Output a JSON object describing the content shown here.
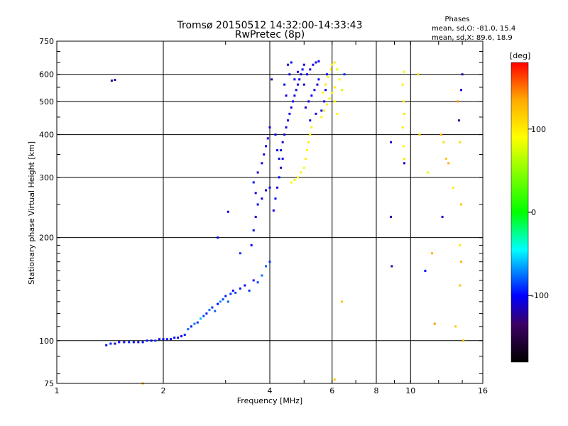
{
  "chart_data": {
    "type": "scatter",
    "title": "Tromsø 20150512 14:32:00-14:33:43",
    "subtitle": "RwPretec (8p)",
    "xlabel": "Frequency [MHz]",
    "ylabel": "Stationary phase Virtual Height [km]",
    "x_scale": "log",
    "y_scale": "log",
    "xlim": [
      1,
      16
    ],
    "ylim": [
      75,
      750
    ],
    "x_ticks": [
      1,
      2,
      4,
      6,
      8,
      10,
      16
    ],
    "y_ticks": [
      75,
      100,
      200,
      300,
      400,
      500,
      600,
      750
    ],
    "grid": true,
    "stats": {
      "heading": "Phases",
      "line_o": "mean, sd,O: -81.0, 15.4",
      "line_x": "mean, sd,X:  89.6, 18.9"
    },
    "colorbar": {
      "label": "[deg]",
      "range": [
        -180,
        180
      ],
      "ticks": [
        100,
        0,
        -100
      ],
      "colors": [
        "#ff0000",
        "#ffaa00",
        "#ffff00",
        "#00ff00",
        "#00ffff",
        "#0000ff",
        "#3c0064",
        "#000000"
      ]
    },
    "series": [
      {
        "points": [
          [
            1.38,
            97,
            -105
          ],
          [
            1.42,
            98,
            -95
          ],
          [
            1.46,
            98,
            -110
          ],
          [
            1.5,
            99,
            -100
          ],
          [
            1.55,
            99,
            -105
          ],
          [
            1.6,
            99,
            -95
          ],
          [
            1.65,
            99,
            -100
          ],
          [
            1.7,
            99,
            -110
          ],
          [
            1.75,
            99,
            -100
          ],
          [
            1.8,
            100,
            -95
          ],
          [
            1.85,
            100,
            -105
          ],
          [
            1.9,
            100,
            -90
          ],
          [
            1.95,
            101,
            -110
          ],
          [
            2.0,
            101,
            -100
          ],
          [
            2.05,
            101,
            -95
          ],
          [
            2.1,
            101,
            -105
          ],
          [
            2.15,
            102,
            -100
          ],
          [
            2.2,
            102,
            -110
          ],
          [
            2.25,
            103,
            -100
          ],
          [
            2.3,
            104,
            -95
          ],
          [
            1.43,
            575,
            -135
          ],
          [
            1.46,
            578,
            -110
          ],
          [
            2.35,
            108,
            -80
          ],
          [
            2.4,
            110,
            -95
          ],
          [
            2.45,
            112,
            -75
          ],
          [
            2.5,
            113,
            -90
          ],
          [
            2.55,
            116,
            -60
          ],
          [
            2.6,
            118,
            -85
          ],
          [
            2.65,
            120,
            -95
          ],
          [
            2.7,
            123,
            -75
          ],
          [
            2.75,
            125,
            -90
          ],
          [
            2.8,
            122,
            -80
          ],
          [
            2.85,
            128,
            -100
          ],
          [
            2.9,
            130,
            -70
          ],
          [
            2.95,
            132,
            -85
          ],
          [
            3.0,
            135,
            -95
          ],
          [
            3.05,
            130,
            -80
          ],
          [
            3.1,
            137,
            -90
          ],
          [
            3.15,
            140,
            -100
          ],
          [
            3.2,
            138,
            -85
          ],
          [
            3.3,
            142,
            -95
          ],
          [
            3.4,
            145,
            -100
          ],
          [
            3.5,
            140,
            -90
          ],
          [
            3.6,
            150,
            -95
          ],
          [
            3.7,
            148,
            -85
          ],
          [
            3.8,
            155,
            -75
          ],
          [
            3.9,
            165,
            -80
          ],
          [
            4.0,
            170,
            -90
          ],
          [
            2.85,
            200,
            -100
          ],
          [
            3.05,
            238,
            -105
          ],
          [
            3.3,
            180,
            -90
          ],
          [
            3.55,
            190,
            -100
          ],
          [
            3.6,
            210,
            -105
          ],
          [
            3.65,
            230,
            -110
          ],
          [
            3.7,
            250,
            -105
          ],
          [
            3.65,
            270,
            -110
          ],
          [
            3.6,
            290,
            -100
          ],
          [
            3.7,
            310,
            -110
          ],
          [
            3.8,
            330,
            -105
          ],
          [
            3.85,
            350,
            -110
          ],
          [
            3.9,
            370,
            -100
          ],
          [
            3.95,
            390,
            -105
          ],
          [
            4.0,
            420,
            -110
          ],
          [
            3.8,
            260,
            -105
          ],
          [
            3.9,
            275,
            -110
          ],
          [
            4.0,
            280,
            -100
          ],
          [
            4.1,
            240,
            -110
          ],
          [
            4.15,
            260,
            -105
          ],
          [
            4.2,
            280,
            -110
          ],
          [
            4.25,
            300,
            -105
          ],
          [
            4.3,
            320,
            -110
          ],
          [
            4.35,
            340,
            -100
          ],
          [
            4.3,
            360,
            -105
          ],
          [
            4.35,
            380,
            -110
          ],
          [
            4.4,
            400,
            -105
          ],
          [
            4.45,
            420,
            -110
          ],
          [
            4.5,
            440,
            -100
          ],
          [
            4.55,
            460,
            -105
          ],
          [
            4.6,
            480,
            -110
          ],
          [
            4.65,
            500,
            -100
          ],
          [
            4.7,
            520,
            -105
          ],
          [
            4.75,
            540,
            -110
          ],
          [
            4.8,
            560,
            -100
          ],
          [
            4.85,
            580,
            -105
          ],
          [
            4.9,
            600,
            -110
          ],
          [
            4.95,
            620,
            -100
          ],
          [
            5.0,
            640,
            -105
          ],
          [
            4.5,
            640,
            -110
          ],
          [
            4.6,
            650,
            -105
          ],
          [
            4.4,
            560,
            -100
          ],
          [
            4.45,
            520,
            -105
          ],
          [
            4.55,
            600,
            -110
          ],
          [
            4.7,
            580,
            -100
          ],
          [
            4.8,
            610,
            -105
          ],
          [
            5.0,
            560,
            -110
          ],
          [
            5.1,
            600,
            -100
          ],
          [
            5.2,
            620,
            -105
          ],
          [
            5.3,
            640,
            -110
          ],
          [
            5.4,
            650,
            -105
          ],
          [
            5.5,
            655,
            -100
          ],
          [
            5.05,
            480,
            -110
          ],
          [
            5.15,
            500,
            -105
          ],
          [
            5.25,
            520,
            -100
          ],
          [
            5.35,
            540,
            -105
          ],
          [
            5.45,
            560,
            -110
          ],
          [
            5.5,
            580,
            -100
          ],
          [
            5.2,
            440,
            -105
          ],
          [
            5.4,
            460,
            -110
          ],
          [
            5.6,
            470,
            -100
          ],
          [
            5.7,
            500,
            -105
          ],
          [
            5.75,
            540,
            -110
          ],
          [
            5.8,
            600,
            -100
          ],
          [
            4.05,
            580,
            -120
          ],
          [
            4.2,
            360,
            -105
          ],
          [
            4.25,
            340,
            -110
          ],
          [
            4.15,
            400,
            -100
          ],
          [
            4.6,
            290,
            95
          ],
          [
            4.7,
            295,
            100
          ],
          [
            4.8,
            300,
            95
          ],
          [
            4.9,
            310,
            100
          ],
          [
            5.0,
            320,
            95
          ],
          [
            5.05,
            340,
            100
          ],
          [
            5.1,
            360,
            95
          ],
          [
            5.15,
            380,
            100
          ],
          [
            5.2,
            400,
            95
          ],
          [
            5.25,
            420,
            100
          ],
          [
            5.6,
            450,
            95
          ],
          [
            5.7,
            470,
            100
          ],
          [
            5.8,
            490,
            95
          ],
          [
            5.9,
            510,
            100
          ],
          [
            6.0,
            530,
            95
          ],
          [
            6.1,
            550,
            100
          ],
          [
            5.65,
            530,
            95
          ],
          [
            5.75,
            560,
            100
          ],
          [
            5.85,
            590,
            95
          ],
          [
            5.95,
            620,
            100
          ],
          [
            6.0,
            640,
            95
          ],
          [
            6.1,
            650,
            100
          ],
          [
            6.2,
            620,
            80
          ],
          [
            6.3,
            580,
            90
          ],
          [
            6.4,
            540,
            75
          ],
          [
            6.1,
            500,
            85
          ],
          [
            6.2,
            460,
            95
          ],
          [
            6.5,
            600,
            -90
          ],
          [
            6.4,
            130,
            120
          ],
          [
            6.1,
            77,
            120
          ],
          [
            1.75,
            75,
            130
          ],
          [
            8.8,
            380,
            -110
          ],
          [
            8.8,
            230,
            -120
          ],
          [
            8.85,
            165,
            -120
          ],
          [
            9.6,
            330,
            -110
          ],
          [
            9.6,
            610,
            95
          ],
          [
            9.5,
            560,
            100
          ],
          [
            9.55,
            500,
            95
          ],
          [
            9.6,
            460,
            105
          ],
          [
            9.5,
            420,
            100
          ],
          [
            9.55,
            370,
            95
          ],
          [
            9.6,
            340,
            100
          ],
          [
            10.5,
            600,
            110
          ],
          [
            10.6,
            400,
            120
          ],
          [
            11.0,
            160,
            -100
          ],
          [
            11.2,
            310,
            80
          ],
          [
            11.5,
            180,
            130
          ],
          [
            11.7,
            112,
            140
          ],
          [
            12.2,
            400,
            130
          ],
          [
            12.3,
            230,
            -110
          ],
          [
            12.4,
            380,
            110
          ],
          [
            12.6,
            340,
            120
          ],
          [
            12.8,
            330,
            130
          ],
          [
            13.2,
            280,
            100
          ],
          [
            13.4,
            110,
            120
          ],
          [
            13.6,
            500,
            140
          ],
          [
            13.7,
            440,
            -120
          ],
          [
            13.8,
            380,
            110
          ],
          [
            13.9,
            540,
            -110
          ],
          [
            14.0,
            600,
            -120
          ],
          [
            13.9,
            250,
            120
          ],
          [
            13.8,
            190,
            100
          ],
          [
            13.9,
            170,
            130
          ],
          [
            13.8,
            145,
            120
          ],
          [
            14.1,
            100,
            130
          ]
        ]
      }
    ]
  }
}
